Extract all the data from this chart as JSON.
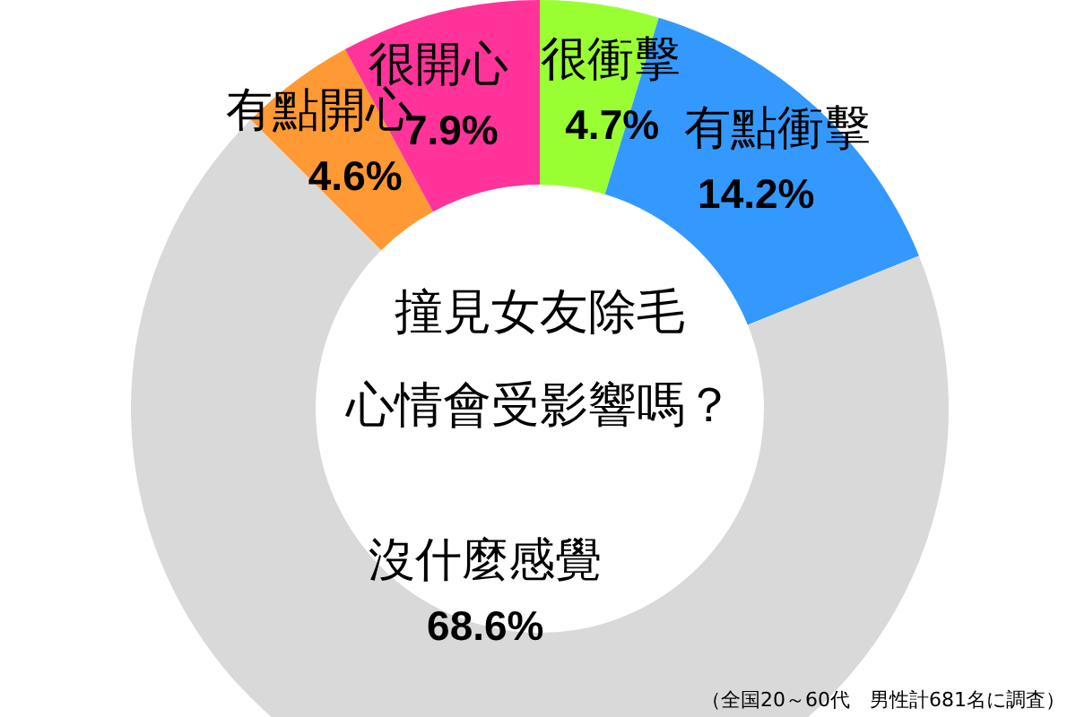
{
  "chart_data": {
    "type": "donut",
    "title": "撞見女友除毛",
    "subtitle": "心情會受影響嗎？",
    "categories": [
      "很衝擊",
      "有點衝擊",
      "沒什麼感覺",
      "有點開心",
      "很開心"
    ],
    "values": [
      4.7,
      14.2,
      68.6,
      4.6,
      7.9
    ],
    "colors": [
      "#99ff33",
      "#3399ff",
      "#d9d9d9",
      "#ff9933",
      "#ff3399"
    ],
    "value_labels": [
      "4.7%",
      "14.2%",
      "68.6%",
      "4.6%",
      "7.9%"
    ],
    "annotations": [
      "（全国20～60代　男性計681名に調査）"
    ]
  }
}
